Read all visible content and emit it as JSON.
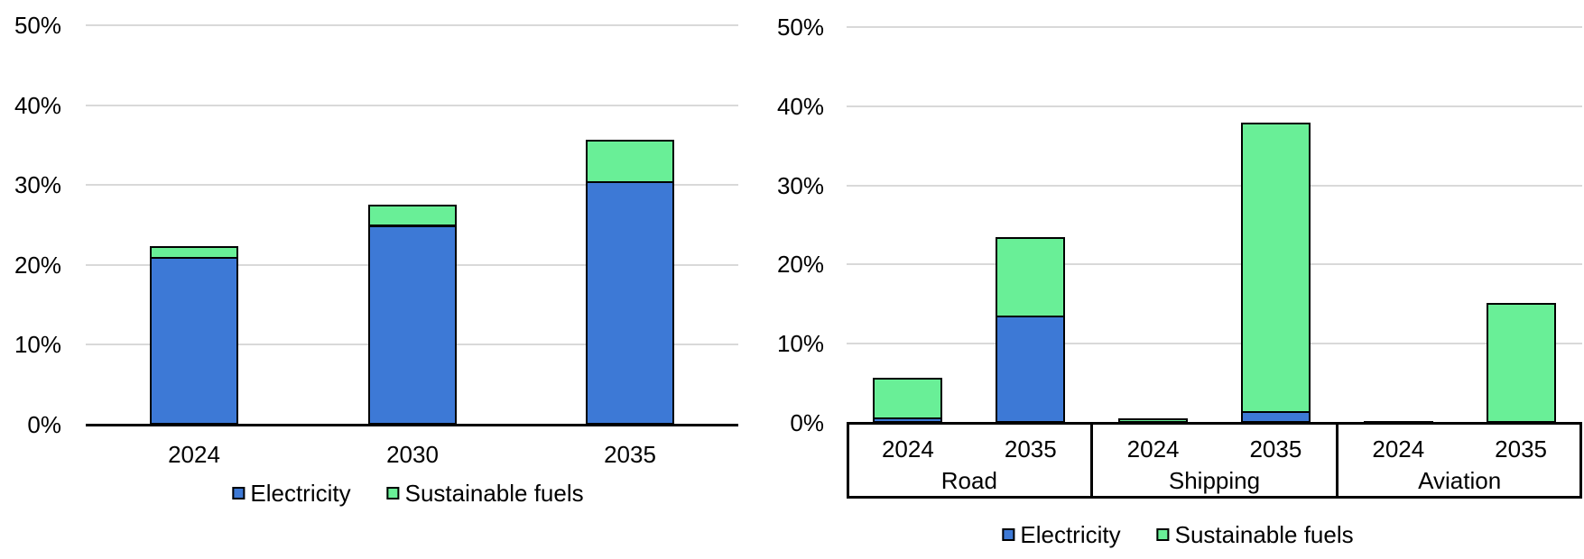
{
  "page": {
    "background": "#ffffff"
  },
  "colors": {
    "electricity": "#3D79D6",
    "sustainable_fuels": "#69EF97",
    "gridline": "#D9D9D9",
    "axis": "#000000",
    "text": "#000000",
    "bar_border": "#000000"
  },
  "chart_data": [
    {
      "id": "overall-transport",
      "type": "bar",
      "stacked": true,
      "title": "",
      "xlabel": "",
      "ylabel": "",
      "ylim": [
        0,
        50
      ],
      "grid": true,
      "legend_position": "bottom",
      "yticks": [
        0,
        10,
        20,
        30,
        40,
        50
      ],
      "ytick_labels": [
        "0%",
        "10%",
        "20%",
        "30%",
        "40%",
        "50%"
      ],
      "categories": [
        "2024",
        "2030",
        "2035"
      ],
      "series": [
        {
          "name": "Electricity",
          "color_key": "electricity",
          "values": [
            21,
            25,
            30.5
          ]
        },
        {
          "name": "Sustainable fuels",
          "color_key": "sustainable_fuels",
          "values": [
            1.4,
            2.5,
            5.2
          ]
        }
      ]
    },
    {
      "id": "by-transport-mode",
      "type": "bar",
      "stacked": true,
      "title": "",
      "xlabel": "",
      "ylabel": "",
      "ylim": [
        0,
        50
      ],
      "grid": true,
      "legend_position": "bottom",
      "yticks": [
        0,
        10,
        20,
        30,
        40,
        50
      ],
      "ytick_labels": [
        "0%",
        "10%",
        "20%",
        "30%",
        "40%",
        "50%"
      ],
      "groups": [
        {
          "label": "Road",
          "categories": [
            "2024",
            "2035"
          ]
        },
        {
          "label": "Shipping",
          "categories": [
            "2024",
            "2035"
          ]
        },
        {
          "label": "Aviation",
          "categories": [
            "2024",
            "2035"
          ]
        }
      ],
      "series": [
        {
          "name": "Electricity",
          "color_key": "electricity",
          "values": [
            0.7,
            13.5,
            0,
            1.5,
            0,
            0
          ]
        },
        {
          "name": "Sustainable fuels",
          "color_key": "sustainable_fuels",
          "values": [
            5.0,
            10.0,
            0.6,
            36.4,
            0.2,
            15.2
          ]
        }
      ]
    }
  ]
}
